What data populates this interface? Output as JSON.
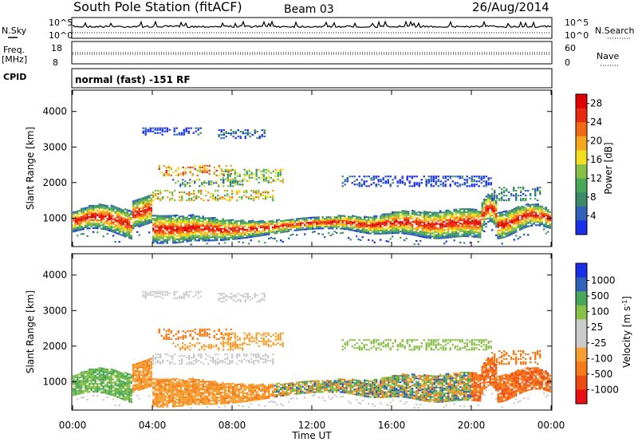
{
  "header": {
    "station": "South Pole Station (fitACF)",
    "beam": "Beam 03",
    "date": "26/Aug/2014"
  },
  "status_labels": {
    "nsky": "N.Sky",
    "nsearch": "N.Search",
    "freq": "Freq.",
    "freq_unit": "[MHz]",
    "nave": "Nave",
    "cpid": "CPID",
    "cpid_value": "normal (fast) -151 RF",
    "noise_ticks_left": [
      "10^5",
      "10^0"
    ],
    "noise_ticks_right": [
      "10^5",
      "10^0"
    ],
    "freq_ticks": [
      "18",
      "8"
    ],
    "nave_ticks": [
      "60",
      "0"
    ]
  },
  "colors": {
    "power_scale": [
      "#1a30e8",
      "#2f62b8",
      "#3d8a6a",
      "#48a85a",
      "#86c046",
      "#f2e020",
      "#f5a81c",
      "#f06a14",
      "#e82a10",
      "#e00000"
    ],
    "velocity_scale": [
      "#e81010",
      "#f04a14",
      "#f57a18",
      "#f5a030",
      "#cccccc",
      "#cccccc",
      "#86c046",
      "#48a85a",
      "#2f62b8",
      "#1a30e8"
    ]
  },
  "chart_data": [
    {
      "type": "heatmap",
      "name": "power",
      "xlabel": "Time UT",
      "ylabel": "Slant Range [km]",
      "x_ticks": [
        "00:00",
        "04:00",
        "08:00",
        "12:00",
        "16:00",
        "20:00",
        "00:00"
      ],
      "x_range_hours": [
        0,
        24
      ],
      "y_ticks": [
        1000,
        2000,
        3000,
        4000
      ],
      "ylim": [
        200,
        4600
      ],
      "colorbar_label": "Power [dB]",
      "colorbar_ticks": [
        4,
        8,
        12,
        16,
        20,
        24,
        28
      ],
      "colorbar_range": [
        0,
        30
      ]
    },
    {
      "type": "heatmap",
      "name": "velocity",
      "xlabel": "Time UT",
      "ylabel": "Slant Range [km]",
      "x_ticks": [
        "00:00",
        "04:00",
        "08:00",
        "12:00",
        "16:00",
        "20:00",
        "00:00"
      ],
      "x_range_hours": [
        0,
        24
      ],
      "y_ticks": [
        1000,
        2000,
        3000,
        4000
      ],
      "ylim": [
        200,
        4600
      ],
      "colorbar_label": "Velocity [m s^-1]",
      "colorbar_ticks": [
        "1000",
        "500",
        "100",
        "25",
        "-25",
        "-100",
        "-500",
        "-1000"
      ]
    }
  ]
}
